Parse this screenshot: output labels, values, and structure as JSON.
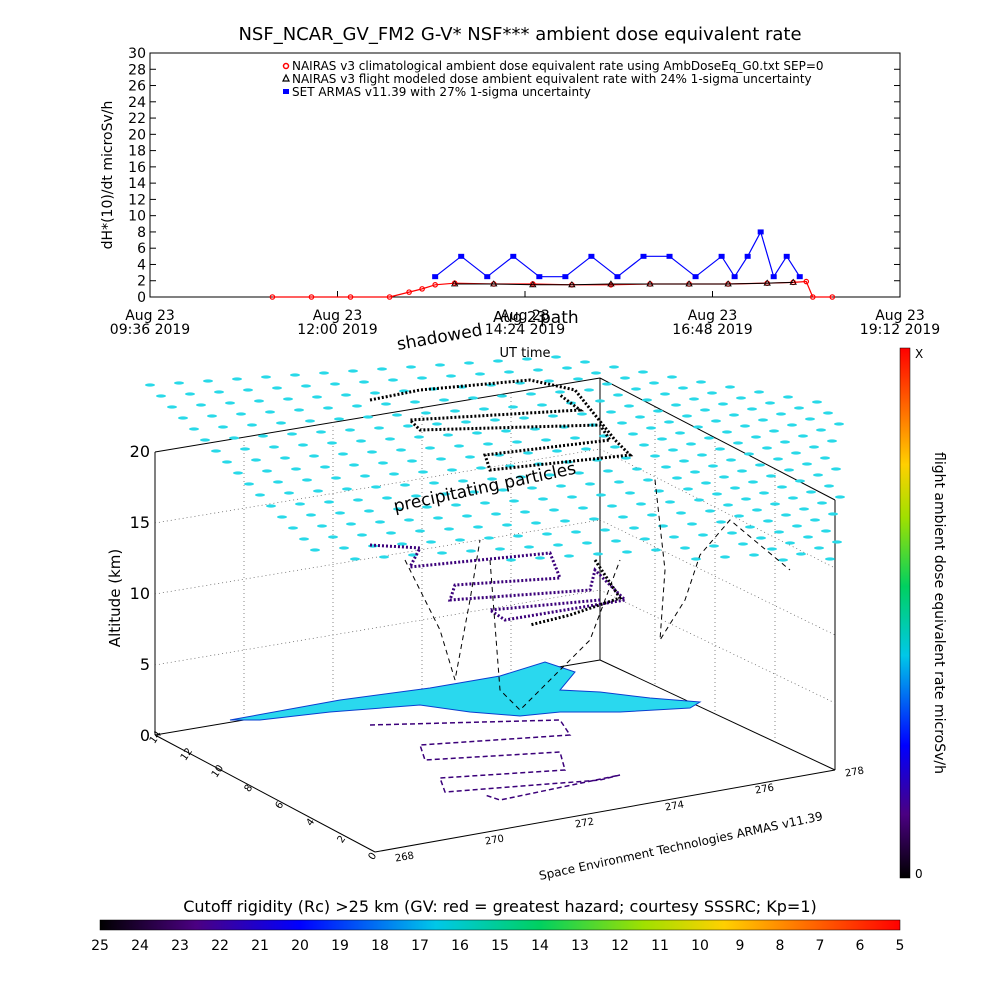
{
  "top_chart": {
    "title": "NSF_NCAR_GV_FM2 G-V* NSF*** ambient dose equivalent rate",
    "ylabel": "dH*(10)/dt microSv/h",
    "xlabel": "UT time",
    "legend": [
      {
        "label": "NAIRAS v3 climatological ambient dose equivalent rate using AmbDoseEq_G0.txt SEP=0",
        "color": "#ff0000"
      },
      {
        "label": "NAIRAS v3 flight modeled dose ambient equivalent rate with 24% 1-sigma uncertainty",
        "color": "#000000"
      },
      {
        "label": "SET ARMAS v11.39 with 27% 1-sigma uncertainty",
        "color": "#0000ff"
      }
    ],
    "x_ticks": [
      {
        "line1": "Aug 23",
        "line2": "09:36 2019"
      },
      {
        "line1": "Aug 23",
        "line2": "12:00 2019"
      },
      {
        "line1": "Aug 23",
        "line2": "14:24 2019"
      },
      {
        "line1": "Aug 23",
        "line2": "16:48 2019"
      },
      {
        "line1": "Aug 23",
        "line2": "19:12 2019"
      }
    ]
  },
  "chart_data": [
    {
      "type": "line",
      "title": "NSF_NCAR_GV_FM2 G-V* NSF*** ambient dose equivalent rate",
      "xlabel": "UT time",
      "ylabel": "dH*(10)/dt microSv/h",
      "xlim": [
        "2019-08-23 09:36",
        "2019-08-23 19:12"
      ],
      "ylim": [
        0,
        30
      ],
      "y_ticks": [
        0,
        2,
        4,
        6,
        8,
        10,
        12,
        14,
        16,
        18,
        20,
        22,
        24,
        26,
        28,
        30
      ],
      "series": [
        {
          "name": "NAIRAS v3 climatological ambient dose equivalent rate using AmbDoseEq_G0.txt SEP=0",
          "color": "#ff0000",
          "x": [
            "11:10",
            "11:40",
            "12:10",
            "12:40",
            "12:55",
            "13:05",
            "13:15",
            "13:30",
            "14:00",
            "14:30",
            "15:00",
            "15:30",
            "16:00",
            "16:30",
            "17:00",
            "17:30",
            "17:50",
            "18:00",
            "18:05",
            "18:20"
          ],
          "y": [
            0.0,
            0.0,
            0.0,
            0.0,
            0.6,
            1.0,
            1.5,
            1.7,
            1.6,
            1.6,
            1.5,
            1.5,
            1.6,
            1.6,
            1.6,
            1.7,
            1.8,
            1.9,
            0.0,
            0.0
          ]
        },
        {
          "name": "NAIRAS v3 flight modeled dose ambient equivalent rate with 24% 1-sigma uncertainty",
          "color": "#000000",
          "x": [
            "13:30",
            "14:00",
            "14:30",
            "15:00",
            "15:30",
            "16:00",
            "16:30",
            "17:00",
            "17:30",
            "17:50"
          ],
          "y": [
            1.6,
            1.6,
            1.5,
            1.5,
            1.6,
            1.6,
            1.6,
            1.6,
            1.7,
            1.8
          ]
        },
        {
          "name": "SET ARMAS v11.39 with 27% 1-sigma uncertainty",
          "color": "#0000ff",
          "x": [
            "13:15",
            "13:35",
            "13:55",
            "14:15",
            "14:35",
            "14:55",
            "15:15",
            "15:35",
            "15:55",
            "16:15",
            "16:35",
            "16:55",
            "17:05",
            "17:15",
            "17:25",
            "17:35",
            "17:45",
            "17:55"
          ],
          "y": [
            2.5,
            5.0,
            2.5,
            5.0,
            2.5,
            2.5,
            5.0,
            2.5,
            5.0,
            5.0,
            2.5,
            5.0,
            2.5,
            5.0,
            8.0,
            2.5,
            5.0,
            2.5
          ]
        }
      ]
    },
    {
      "type": "scatter",
      "subtype": "3d-trajectory",
      "xlabel": "",
      "ylabel": "",
      "zlabel": "Altitude (km)",
      "x_ticks": [
        "268",
        "270",
        "272",
        "274",
        "276",
        "278"
      ],
      "y_ticks": [
        "0",
        "2",
        "4",
        "6",
        "8",
        "10",
        "12",
        "14"
      ],
      "z_ticks": [
        "0",
        "5",
        "10",
        "15",
        "20"
      ],
      "annotations": [
        "shadowed",
        "path",
        "Aug 23",
        "precipitating particles"
      ],
      "colorbar": {
        "label": "flight ambient dose equivalent rate microSv/h",
        "top_label": "X",
        "bottom_label": "0"
      },
      "source": "Space Environment Technologies ARMAS v11.39"
    },
    {
      "type": "heatmap",
      "title": "Cutoff rigidity (Rc) >25 km (GV: red = greatest hazard; courtesy SSSRC; Kp=1)",
      "colorbar_ticks": [
        "25",
        "24",
        "23",
        "22",
        "21",
        "20",
        "19",
        "18",
        "17",
        "16",
        "15",
        "14",
        "13",
        "12",
        "11",
        "10",
        "9",
        "8",
        "7",
        "6",
        "5"
      ]
    }
  ]
}
